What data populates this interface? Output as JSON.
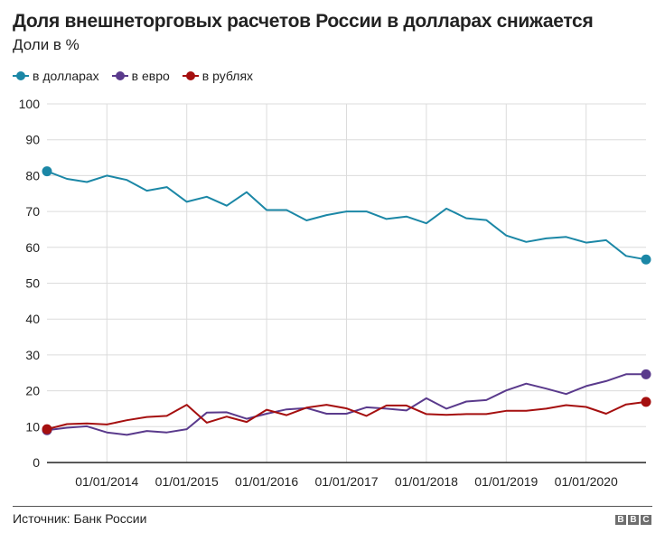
{
  "header": {
    "title": "Доля внешнеторговых расчетов России в долларах снижается",
    "subtitle": "Доли в %"
  },
  "legend": [
    {
      "label": "в долларах",
      "color": "#1b87a6"
    },
    {
      "label": "в евро",
      "color": "#5a3a8c"
    },
    {
      "label": "в рублях",
      "color": "#a50f0f"
    }
  ],
  "footer": {
    "source": "Источник: Банк России",
    "logo": [
      "B",
      "B",
      "C"
    ]
  },
  "chart_data": {
    "type": "line",
    "title": "Доля внешнеторговых расчетов России в долларах снижается",
    "subtitle": "Доли в %",
    "xlabel": "",
    "ylabel": "",
    "ylim": [
      0,
      100
    ],
    "yticks": [
      0,
      10,
      20,
      30,
      40,
      50,
      60,
      70,
      80,
      90,
      100
    ],
    "xtick_labels": [
      "01/01/2014",
      "01/01/2015",
      "01/01/2016",
      "01/01/2017",
      "01/01/2018",
      "01/01/2019",
      "01/01/2020"
    ],
    "grid": true,
    "legend_position": "top-left",
    "x": [
      "01/04/2013",
      "01/07/2013",
      "01/10/2013",
      "01/01/2014",
      "01/04/2014",
      "01/07/2014",
      "01/10/2014",
      "01/01/2015",
      "01/04/2015",
      "01/07/2015",
      "01/10/2015",
      "01/01/2016",
      "01/04/2016",
      "01/07/2016",
      "01/10/2016",
      "01/01/2017",
      "01/04/2017",
      "01/07/2017",
      "01/10/2017",
      "01/01/2018",
      "01/04/2018",
      "01/07/2018",
      "01/10/2018",
      "01/01/2019",
      "01/04/2019",
      "01/07/2019",
      "01/10/2019",
      "01/01/2020",
      "01/04/2020",
      "01/07/2020",
      "01/10/2020"
    ],
    "series": [
      {
        "name": "в долларах",
        "color": "#1b87a6",
        "values": [
          81.2,
          79.1,
          78.2,
          80.0,
          78.8,
          75.8,
          76.8,
          72.7,
          74.1,
          71.6,
          75.4,
          70.4,
          70.4,
          67.5,
          69.0,
          70.0,
          70.0,
          67.9,
          68.6,
          66.7,
          70.8,
          68.1,
          67.6,
          63.3,
          61.5,
          62.5,
          62.9,
          61.3,
          62.0,
          57.6,
          56.6
        ]
      },
      {
        "name": "в евро",
        "color": "#5a3a8c",
        "values": [
          9.0,
          9.7,
          10.1,
          8.4,
          7.7,
          8.8,
          8.4,
          9.3,
          13.9,
          14.0,
          12.2,
          13.6,
          14.8,
          15.2,
          13.6,
          13.6,
          15.4,
          15.0,
          14.5,
          17.9,
          15.0,
          17.0,
          17.4,
          20.1,
          22.0,
          20.6,
          19.1,
          21.3,
          22.7,
          24.6,
          24.6
        ]
      },
      {
        "name": "в рублях",
        "color": "#a50f0f",
        "values": [
          9.3,
          10.7,
          10.9,
          10.6,
          11.8,
          12.7,
          13.0,
          16.1,
          11.1,
          12.8,
          11.3,
          14.7,
          13.2,
          15.3,
          16.1,
          15.1,
          13.0,
          15.9,
          15.9,
          13.5,
          13.3,
          13.5,
          13.5,
          14.4,
          14.4,
          15.0,
          16.0,
          15.5,
          13.6,
          16.2,
          16.9
        ]
      }
    ]
  }
}
